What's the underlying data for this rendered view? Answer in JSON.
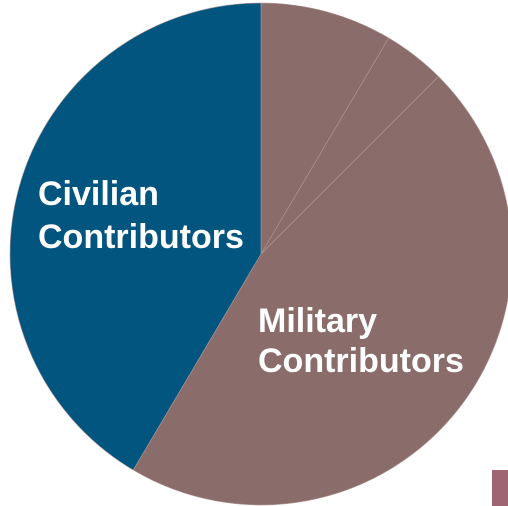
{
  "chart_data": {
    "type": "pie",
    "title": "",
    "slices": [
      {
        "name": "Military Contributors",
        "value": 8.5,
        "color": "#8a6d6b"
      },
      {
        "name": "Military Contributors",
        "value": 4.0,
        "color": "#8a6d6b"
      },
      {
        "name": "Military Contributors",
        "value": 46.0,
        "color": "#8a6d6b"
      },
      {
        "name": "Civilian Contributors",
        "value": 41.5,
        "color": "#02557e"
      }
    ],
    "labels": {
      "civilian": [
        "Civilian",
        "Contributors"
      ],
      "military": [
        "Military",
        "Contributors"
      ]
    },
    "legend_swatch_color": "#a06572"
  }
}
